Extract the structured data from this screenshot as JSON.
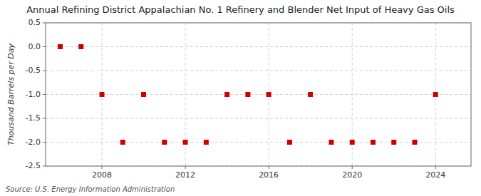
{
  "chart_data": {
    "type": "scatter",
    "title": "Annual Refining District Appalachian No. 1 Refinery and Blender Net Input of Heavy Gas Oils",
    "y_label": "Thousand Barrels per Day",
    "source": "Source: U.S. Energy Information Administration",
    "x": [
      2006,
      2007,
      2008,
      2009,
      2010,
      2011,
      2012,
      2013,
      2014,
      2015,
      2016,
      2017,
      2018,
      2019,
      2020,
      2021,
      2022,
      2023,
      2024
    ],
    "values": [
      0.0,
      0.0,
      -1.0,
      -2.0,
      -1.0,
      -2.0,
      -2.0,
      -2.0,
      -1.0,
      -1.0,
      -1.0,
      -2.0,
      -1.0,
      -2.0,
      -2.0,
      -2.0,
      -2.0,
      -2.0,
      -1.0
    ],
    "color": "#cc0000",
    "marker": "square",
    "xlim": [
      2005.3,
      2025.7
    ],
    "xticks": [
      2008,
      2012,
      2016,
      2020,
      2024
    ],
    "ylim": [
      -2.5,
      0.5
    ],
    "yticks": [
      0.5,
      {
        "value": 0.0,
        "label": "0.0"
      },
      -0.5,
      {
        "value": -1.0,
        "label": "-1.0"
      },
      -1.5,
      {
        "value": -2.0,
        "label": "-2.0"
      },
      -2.5
    ],
    "grid": true
  }
}
